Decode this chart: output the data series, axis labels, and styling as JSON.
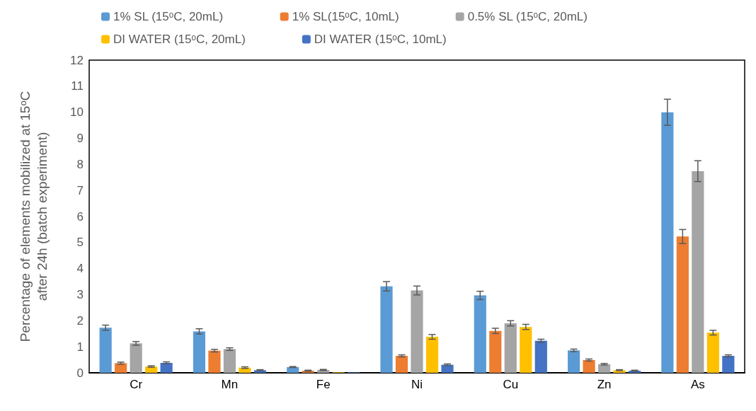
{
  "chart_data": {
    "type": "bar",
    "ylabel": "Percentage of elements mobilized at 15ᵒC\nafter 24h (batch experiment)",
    "categories": [
      "Cr",
      "Mn",
      "Fe",
      "Ni",
      "Cu",
      "Zn",
      "As"
    ],
    "series": [
      {
        "name": "1% SL (15ᵒC, 20mL)",
        "color": "#5b9bd5",
        "values": [
          1.73,
          1.59,
          0.22,
          3.32,
          2.97,
          0.86,
          10.0
        ],
        "errors": [
          0.1,
          0.1,
          0.02,
          0.18,
          0.16,
          0.05,
          0.5
        ]
      },
      {
        "name": "1% SL(15ᵒC, 10mL)",
        "color": "#ed7d31",
        "values": [
          0.37,
          0.85,
          0.08,
          0.65,
          1.61,
          0.49,
          5.23
        ],
        "errors": [
          0.04,
          0.05,
          0.02,
          0.04,
          0.1,
          0.04,
          0.27
        ]
      },
      {
        "name": "0.5% SL (15ᵒC, 20mL)",
        "color": "#a5a5a5",
        "values": [
          1.13,
          0.91,
          0.11,
          3.16,
          1.9,
          0.33,
          7.74
        ],
        "errors": [
          0.07,
          0.05,
          0.02,
          0.17,
          0.1,
          0.03,
          0.4
        ]
      },
      {
        "name": "DI WATER (15ᵒC, 20mL)",
        "color": "#ffc000",
        "values": [
          0.24,
          0.2,
          0.02,
          1.38,
          1.76,
          0.1,
          1.54
        ],
        "errors": [
          0.03,
          0.03,
          null,
          0.09,
          0.1,
          0.02,
          0.09
        ]
      },
      {
        "name": "DI WATER (15ᵒC, 10mL)",
        "color": "#4472c4",
        "values": [
          0.38,
          0.1,
          0.02,
          0.31,
          1.23,
          0.08,
          0.65
        ],
        "errors": [
          0.04,
          0.02,
          null,
          0.03,
          0.06,
          0.02,
          0.04
        ]
      }
    ],
    "ylim": [
      0,
      12
    ],
    "yticks": [
      0,
      1,
      2,
      3,
      4,
      5,
      6,
      7,
      8,
      9,
      10,
      11,
      12
    ],
    "grid": false,
    "legend": "top"
  }
}
